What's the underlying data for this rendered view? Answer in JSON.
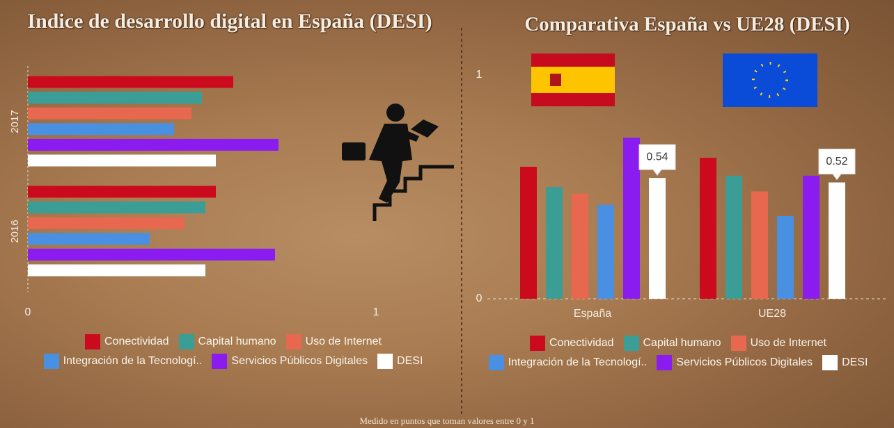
{
  "chart_data": [
    {
      "type": "hbar",
      "title": "Indice de desarrollo digital en España (DESI)",
      "categories": [
        "2017",
        "2016"
      ],
      "series": [
        {
          "name": "Conectividad",
          "color": "#cc0a1e",
          "values": [
            0.59,
            0.54
          ]
        },
        {
          "name": "Capital humano",
          "color": "#3a9e96",
          "values": [
            0.5,
            0.51
          ]
        },
        {
          "name": "Uso de Internet",
          "color": "#e8674f",
          "values": [
            0.47,
            0.45
          ]
        },
        {
          "name": "Integración de la Tecnologí..",
          "color": "#4a90e2",
          "values": [
            0.42,
            0.35
          ]
        },
        {
          "name": "Servicios Públicos Digitales",
          "color": "#8b1cf0",
          "values": [
            0.72,
            0.71
          ]
        },
        {
          "name": "DESI",
          "color": "#ffffff",
          "values": [
            0.54,
            0.51
          ]
        }
      ],
      "xlim": [
        0,
        1
      ],
      "xticks": [
        0,
        1
      ]
    },
    {
      "type": "bar",
      "title": "Comparativa España vs UE28 (DESI)",
      "categories": [
        "España",
        "UE28"
      ],
      "series": [
        {
          "name": "Conectividad",
          "color": "#cc0a1e",
          "values": [
            0.59,
            0.63
          ]
        },
        {
          "name": "Capital humano",
          "color": "#3a9e96",
          "values": [
            0.5,
            0.55
          ]
        },
        {
          "name": "Uso de Internet",
          "color": "#e8674f",
          "values": [
            0.47,
            0.48
          ]
        },
        {
          "name": "Integración de la Tecnologí..",
          "color": "#4a90e2",
          "values": [
            0.42,
            0.37
          ]
        },
        {
          "name": "Servicios Públicos Digitales",
          "color": "#8b1cf0",
          "values": [
            0.72,
            0.55
          ]
        },
        {
          "name": "DESI",
          "color": "#ffffff",
          "values": [
            0.54,
            0.52
          ],
          "labeled": true
        }
      ],
      "ylim": [
        0,
        1
      ],
      "yticks": [
        0,
        1
      ]
    }
  ],
  "footer": "Medido en puntos que toman valores entre 0 y 1"
}
